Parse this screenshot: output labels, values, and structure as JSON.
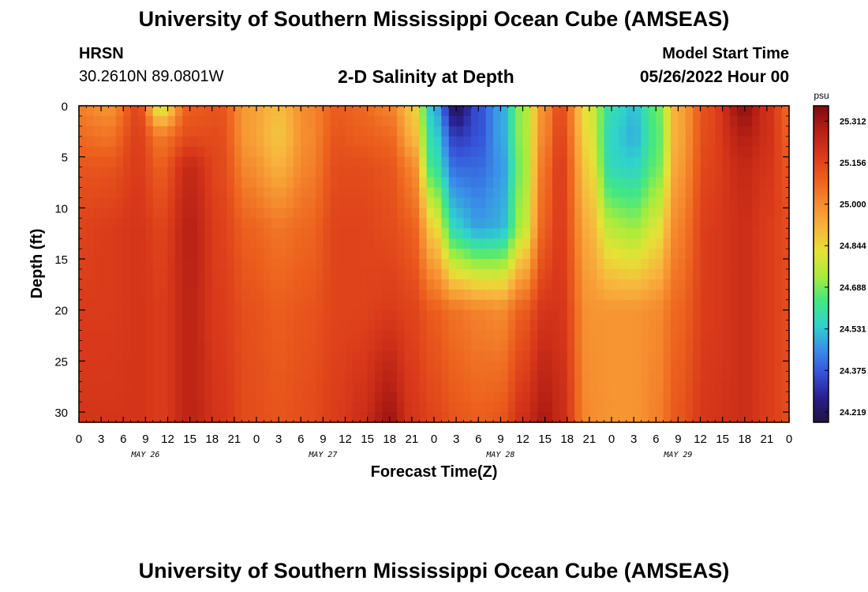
{
  "header": {
    "title": "University of Southern Mississippi Ocean Cube (AMSEAS)",
    "station": "HRSN",
    "coords": "30.2610N  89.0801W",
    "plot_title": "2-D Salinity at Depth",
    "model_start_label": "Model Start Time",
    "model_start_value": "05/26/2022 Hour 00"
  },
  "footer": {
    "title": "University of Southern Mississippi Ocean Cube (AMSEAS)"
  },
  "chart_data": {
    "type": "heatmap",
    "title": "2-D Salinity at Depth",
    "xlabel": "Forecast Time(Z)",
    "ylabel": "Depth (ft)",
    "x_hours": [
      0,
      96
    ],
    "y_range_ft": [
      0,
      31
    ],
    "y_inverted": true,
    "x_ticks": [
      "0",
      "3",
      "6",
      "9",
      "12",
      "15",
      "18",
      "21",
      "0",
      "3",
      "6",
      "9",
      "12",
      "15",
      "18",
      "21",
      "0",
      "3",
      "6",
      "9",
      "12",
      "15",
      "18",
      "21",
      "0",
      "3",
      "6",
      "9",
      "12",
      "15",
      "18",
      "21",
      "0"
    ],
    "y_ticks": [
      "0",
      "5",
      "10",
      "15",
      "20",
      "25",
      "30"
    ],
    "date_labels": [
      "MAY 26",
      "MAY 27",
      "MAY 28",
      "MAY 29"
    ],
    "colorbar": {
      "unit": "psu",
      "min": 24.18,
      "max": 25.37,
      "tick_labels": [
        "25.312",
        "25.156",
        "25.000",
        "24.844",
        "24.688",
        "24.531",
        "24.375",
        "24.219"
      ],
      "palette": [
        "#201240",
        "#2a1e8c",
        "#3551d8",
        "#3a8fe8",
        "#2fd3cc",
        "#45e880",
        "#a8ec3c",
        "#e6e236",
        "#f8b43e",
        "#f58a2e",
        "#ec5f1d",
        "#d9381a",
        "#b51f14",
        "#7e0b10"
      ]
    },
    "salinity_psu_by_hour": [
      {
        "hour": 0,
        "profile": [
          {
            "depth": 0,
            "value": 25.02
          },
          {
            "depth": 3,
            "value": 25.07
          },
          {
            "depth": 6,
            "value": 25.12
          },
          {
            "depth": 12,
            "value": 25.16
          },
          {
            "depth": 20,
            "value": 25.18
          },
          {
            "depth": 31,
            "value": 25.2
          }
        ]
      },
      {
        "hour": 4,
        "profile": [
          {
            "depth": 0,
            "value": 24.98
          },
          {
            "depth": 3,
            "value": 25.05
          },
          {
            "depth": 6,
            "value": 25.12
          },
          {
            "depth": 12,
            "value": 25.18
          },
          {
            "depth": 20,
            "value": 25.18
          },
          {
            "depth": 31,
            "value": 25.2
          }
        ]
      },
      {
        "hour": 8,
        "profile": [
          {
            "depth": 0,
            "value": 25.15
          },
          {
            "depth": 3,
            "value": 25.17
          },
          {
            "depth": 6,
            "value": 25.18
          },
          {
            "depth": 12,
            "value": 25.2
          },
          {
            "depth": 20,
            "value": 25.2
          },
          {
            "depth": 31,
            "value": 25.2
          }
        ]
      },
      {
        "hour": 11,
        "profile": [
          {
            "depth": 0,
            "value": 24.78
          },
          {
            "depth": 3,
            "value": 25.04
          },
          {
            "depth": 6,
            "value": 25.1
          },
          {
            "depth": 12,
            "value": 25.16
          },
          {
            "depth": 20,
            "value": 25.18
          },
          {
            "depth": 31,
            "value": 25.18
          }
        ]
      },
      {
        "hour": 15,
        "profile": [
          {
            "depth": 0,
            "value": 25.1
          },
          {
            "depth": 3,
            "value": 25.14
          },
          {
            "depth": 6,
            "value": 25.24
          },
          {
            "depth": 12,
            "value": 25.27
          },
          {
            "depth": 20,
            "value": 25.26
          },
          {
            "depth": 31,
            "value": 25.26
          }
        ]
      },
      {
        "hour": 19,
        "profile": [
          {
            "depth": 0,
            "value": 25.12
          },
          {
            "depth": 3,
            "value": 25.14
          },
          {
            "depth": 6,
            "value": 25.15
          },
          {
            "depth": 12,
            "value": 25.17
          },
          {
            "depth": 20,
            "value": 25.18
          },
          {
            "depth": 31,
            "value": 25.2
          }
        ]
      },
      {
        "hour": 23,
        "profile": [
          {
            "depth": 0,
            "value": 24.96
          },
          {
            "depth": 3,
            "value": 24.96
          },
          {
            "depth": 6,
            "value": 25.0
          },
          {
            "depth": 12,
            "value": 25.09
          },
          {
            "depth": 20,
            "value": 25.13
          },
          {
            "depth": 31,
            "value": 25.14
          }
        ]
      },
      {
        "hour": 27,
        "profile": [
          {
            "depth": 0,
            "value": 24.9
          },
          {
            "depth": 3,
            "value": 24.88
          },
          {
            "depth": 6,
            "value": 24.92
          },
          {
            "depth": 12,
            "value": 25.05
          },
          {
            "depth": 20,
            "value": 25.1
          },
          {
            "depth": 31,
            "value": 25.12
          }
        ]
      },
      {
        "hour": 31,
        "profile": [
          {
            "depth": 0,
            "value": 25.01
          },
          {
            "depth": 3,
            "value": 25.0
          },
          {
            "depth": 6,
            "value": 25.02
          },
          {
            "depth": 12,
            "value": 25.08
          },
          {
            "depth": 20,
            "value": 25.12
          },
          {
            "depth": 31,
            "value": 25.14
          }
        ]
      },
      {
        "hour": 35,
        "profile": [
          {
            "depth": 0,
            "value": 25.1
          },
          {
            "depth": 3,
            "value": 25.12
          },
          {
            "depth": 6,
            "value": 25.14
          },
          {
            "depth": 12,
            "value": 25.16
          },
          {
            "depth": 20,
            "value": 25.16
          },
          {
            "depth": 31,
            "value": 25.18
          }
        ]
      },
      {
        "hour": 38,
        "profile": [
          {
            "depth": 0,
            "value": 25.08
          },
          {
            "depth": 3,
            "value": 25.1
          },
          {
            "depth": 6,
            "value": 25.14
          },
          {
            "depth": 12,
            "value": 25.16
          },
          {
            "depth": 20,
            "value": 25.16
          },
          {
            "depth": 31,
            "value": 25.22
          }
        ]
      },
      {
        "hour": 42,
        "profile": [
          {
            "depth": 0,
            "value": 25.02
          },
          {
            "depth": 3,
            "value": 25.08
          },
          {
            "depth": 6,
            "value": 25.12
          },
          {
            "depth": 12,
            "value": 25.14
          },
          {
            "depth": 20,
            "value": 25.18
          },
          {
            "depth": 31,
            "value": 25.32
          }
        ]
      },
      {
        "hour": 45,
        "profile": [
          {
            "depth": 0,
            "value": 24.88
          },
          {
            "depth": 3,
            "value": 24.92
          },
          {
            "depth": 6,
            "value": 25.02
          },
          {
            "depth": 12,
            "value": 25.1
          },
          {
            "depth": 20,
            "value": 25.16
          },
          {
            "depth": 31,
            "value": 25.2
          }
        ]
      },
      {
        "hour": 48,
        "profile": [
          {
            "depth": 0,
            "value": 24.5
          },
          {
            "depth": 3,
            "value": 24.55
          },
          {
            "depth": 6,
            "value": 24.6
          },
          {
            "depth": 12,
            "value": 24.85
          },
          {
            "depth": 20,
            "value": 25.1
          },
          {
            "depth": 31,
            "value": 25.16
          }
        ]
      },
      {
        "hour": 51,
        "profile": [
          {
            "depth": 0,
            "value": 24.2
          },
          {
            "depth": 3,
            "value": 24.32
          },
          {
            "depth": 6,
            "value": 24.4
          },
          {
            "depth": 12,
            "value": 24.55
          },
          {
            "depth": 20,
            "value": 25.05
          },
          {
            "depth": 31,
            "value": 25.12
          }
        ]
      },
      {
        "hour": 54,
        "profile": [
          {
            "depth": 0,
            "value": 24.36
          },
          {
            "depth": 3,
            "value": 24.36
          },
          {
            "depth": 6,
            "value": 24.4
          },
          {
            "depth": 12,
            "value": 24.48
          },
          {
            "depth": 20,
            "value": 25.02
          },
          {
            "depth": 31,
            "value": 25.1
          }
        ]
      },
      {
        "hour": 57,
        "profile": [
          {
            "depth": 0,
            "value": 24.48
          },
          {
            "depth": 3,
            "value": 24.48
          },
          {
            "depth": 6,
            "value": 24.46
          },
          {
            "depth": 12,
            "value": 24.5
          },
          {
            "depth": 20,
            "value": 25.0
          },
          {
            "depth": 31,
            "value": 25.12
          }
        ]
      },
      {
        "hour": 60,
        "profile": [
          {
            "depth": 0,
            "value": 24.72
          },
          {
            "depth": 3,
            "value": 24.72
          },
          {
            "depth": 6,
            "value": 24.7
          },
          {
            "depth": 12,
            "value": 24.75
          },
          {
            "depth": 20,
            "value": 25.1
          },
          {
            "depth": 31,
            "value": 25.22
          }
        ]
      },
      {
        "hour": 63,
        "profile": [
          {
            "depth": 0,
            "value": 25.0
          },
          {
            "depth": 3,
            "value": 25.02
          },
          {
            "depth": 6,
            "value": 25.06
          },
          {
            "depth": 12,
            "value": 25.1
          },
          {
            "depth": 20,
            "value": 25.2
          },
          {
            "depth": 31,
            "value": 25.3
          }
        ]
      },
      {
        "hour": 65,
        "profile": [
          {
            "depth": 0,
            "value": 25.14
          },
          {
            "depth": 3,
            "value": 25.16
          },
          {
            "depth": 6,
            "value": 25.18
          },
          {
            "depth": 12,
            "value": 25.18
          },
          {
            "depth": 20,
            "value": 25.2
          },
          {
            "depth": 31,
            "value": 25.24
          }
        ]
      },
      {
        "hour": 69,
        "profile": [
          {
            "depth": 0,
            "value": 24.8
          },
          {
            "depth": 3,
            "value": 24.82
          },
          {
            "depth": 6,
            "value": 24.85
          },
          {
            "depth": 12,
            "value": 24.92
          },
          {
            "depth": 20,
            "value": 24.98
          },
          {
            "depth": 31,
            "value": 25.0
          }
        ]
      },
      {
        "hour": 72,
        "profile": [
          {
            "depth": 0,
            "value": 24.58
          },
          {
            "depth": 3,
            "value": 24.55
          },
          {
            "depth": 6,
            "value": 24.56
          },
          {
            "depth": 12,
            "value": 24.75
          },
          {
            "depth": 20,
            "value": 24.98
          },
          {
            "depth": 31,
            "value": 24.98
          }
        ]
      },
      {
        "hour": 75,
        "profile": [
          {
            "depth": 0,
            "value": 24.52
          },
          {
            "depth": 3,
            "value": 24.5
          },
          {
            "depth": 6,
            "value": 24.55
          },
          {
            "depth": 12,
            "value": 24.72
          },
          {
            "depth": 20,
            "value": 24.98
          },
          {
            "depth": 31,
            "value": 24.98
          }
        ]
      },
      {
        "hour": 78,
        "profile": [
          {
            "depth": 0,
            "value": 24.66
          },
          {
            "depth": 3,
            "value": 24.64
          },
          {
            "depth": 6,
            "value": 24.66
          },
          {
            "depth": 12,
            "value": 24.8
          },
          {
            "depth": 20,
            "value": 25.0
          },
          {
            "depth": 31,
            "value": 25.02
          }
        ]
      },
      {
        "hour": 81,
        "profile": [
          {
            "depth": 0,
            "value": 24.94
          },
          {
            "depth": 3,
            "value": 24.94
          },
          {
            "depth": 6,
            "value": 24.96
          },
          {
            "depth": 12,
            "value": 25.02
          },
          {
            "depth": 20,
            "value": 25.08
          },
          {
            "depth": 31,
            "value": 25.12
          }
        ]
      },
      {
        "hour": 85,
        "profile": [
          {
            "depth": 0,
            "value": 25.14
          },
          {
            "depth": 3,
            "value": 25.15
          },
          {
            "depth": 6,
            "value": 25.16
          },
          {
            "depth": 12,
            "value": 25.18
          },
          {
            "depth": 20,
            "value": 25.18
          },
          {
            "depth": 31,
            "value": 25.2
          }
        ]
      },
      {
        "hour": 90,
        "profile": [
          {
            "depth": 0,
            "value": 25.34
          },
          {
            "depth": 3,
            "value": 25.28
          },
          {
            "depth": 6,
            "value": 25.24
          },
          {
            "depth": 12,
            "value": 25.22
          },
          {
            "depth": 20,
            "value": 25.22
          },
          {
            "depth": 31,
            "value": 25.22
          }
        ]
      },
      {
        "hour": 93,
        "profile": [
          {
            "depth": 0,
            "value": 25.22
          },
          {
            "depth": 3,
            "value": 25.22
          },
          {
            "depth": 6,
            "value": 25.2
          },
          {
            "depth": 12,
            "value": 25.18
          },
          {
            "depth": 20,
            "value": 25.18
          },
          {
            "depth": 31,
            "value": 25.18
          }
        ]
      },
      {
        "hour": 96,
        "profile": [
          {
            "depth": 0,
            "value": 25.08
          },
          {
            "depth": 3,
            "value": 25.1
          },
          {
            "depth": 6,
            "value": 25.12
          },
          {
            "depth": 12,
            "value": 25.14
          },
          {
            "depth": 20,
            "value": 25.14
          },
          {
            "depth": 31,
            "value": 25.14
          }
        ]
      }
    ]
  }
}
